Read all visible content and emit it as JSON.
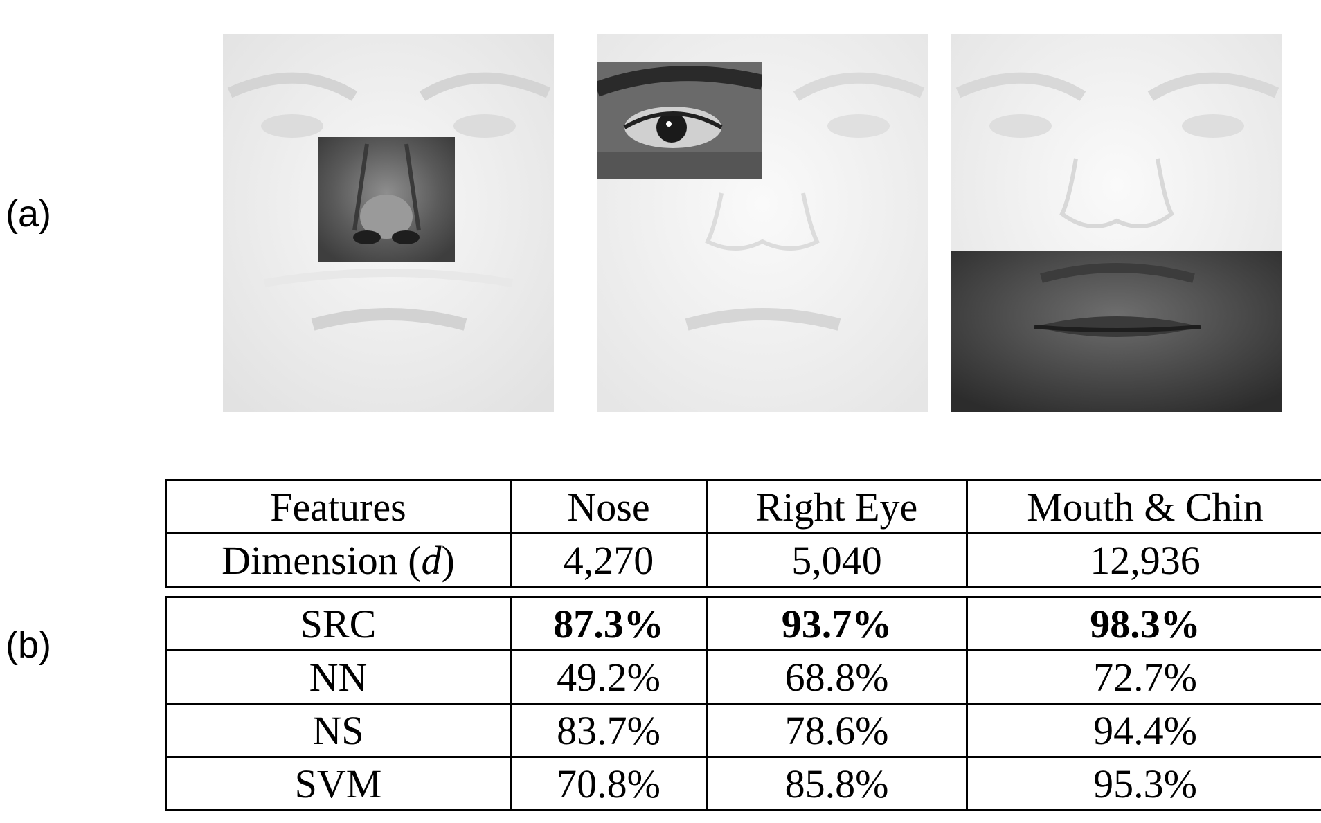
{
  "panel_labels": {
    "a": "(a)",
    "b": "(b)"
  },
  "faces": [
    {
      "patch": "Nose"
    },
    {
      "patch": "Right Eye"
    },
    {
      "patch": "Mouth & Chin"
    }
  ],
  "table": {
    "header": [
      "Features",
      "Nose",
      "Right Eye",
      "Mouth & Chin"
    ],
    "dimension_row": {
      "label_prefix": "Dimension (",
      "label_symbol": "d",
      "label_suffix": ")",
      "values": [
        "4,270",
        "5,040",
        "12,936"
      ]
    },
    "rows": [
      {
        "method": "SRC",
        "values": [
          "87.3%",
          "93.7%",
          "98.3%"
        ],
        "bold": true
      },
      {
        "method": "NN",
        "values": [
          "49.2%",
          "68.8%",
          "72.7%"
        ],
        "bold": false
      },
      {
        "method": "NS",
        "values": [
          "83.7%",
          "78.6%",
          "94.4%"
        ],
        "bold": false
      },
      {
        "method": "SVM",
        "values": [
          "70.8%",
          "85.8%",
          "95.3%"
        ],
        "bold": false
      }
    ]
  }
}
